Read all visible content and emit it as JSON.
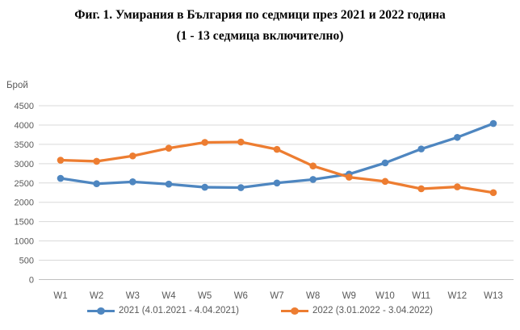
{
  "title": {
    "line1": "Фиг. 1. Умирания в България по седмици през 2021 и 2022 година",
    "line2": "(1 - 13 седмица включително)"
  },
  "chart_data": {
    "type": "line",
    "title": "Фиг. 1. Умирания в България по седмици през 2021 и 2022 година (1 - 13 седмица включително)",
    "ylabel": "Брой",
    "xlabel": "",
    "categories": [
      "W1",
      "W2",
      "W3",
      "W4",
      "W5",
      "W6",
      "W7",
      "W8",
      "W9",
      "W10",
      "W11",
      "W12",
      "W13"
    ],
    "series": [
      {
        "name": "2021 (4.01.2021 - 4.04.2021)",
        "color": "#4E86C0",
        "values": [
          2620,
          2480,
          2530,
          2470,
          2390,
          2380,
          2500,
          2590,
          2730,
          3020,
          3380,
          3680,
          4040
        ]
      },
      {
        "name": "2022 (3.01.2022 - 3.04.2022)",
        "color": "#ED7D31",
        "values": [
          3090,
          3060,
          3200,
          3400,
          3550,
          3560,
          3370,
          2940,
          2650,
          2540,
          2350,
          2400,
          2250
        ]
      }
    ],
    "ylim": [
      0,
      4500
    ],
    "ytick_step": 500,
    "grid": true,
    "legend_position": "bottom",
    "marker": "circle"
  },
  "colors": {
    "gridline": "#D9D9D9",
    "axis_line": "#C0C0C0",
    "chart_text": "#595959",
    "title_text": "#000000"
  }
}
